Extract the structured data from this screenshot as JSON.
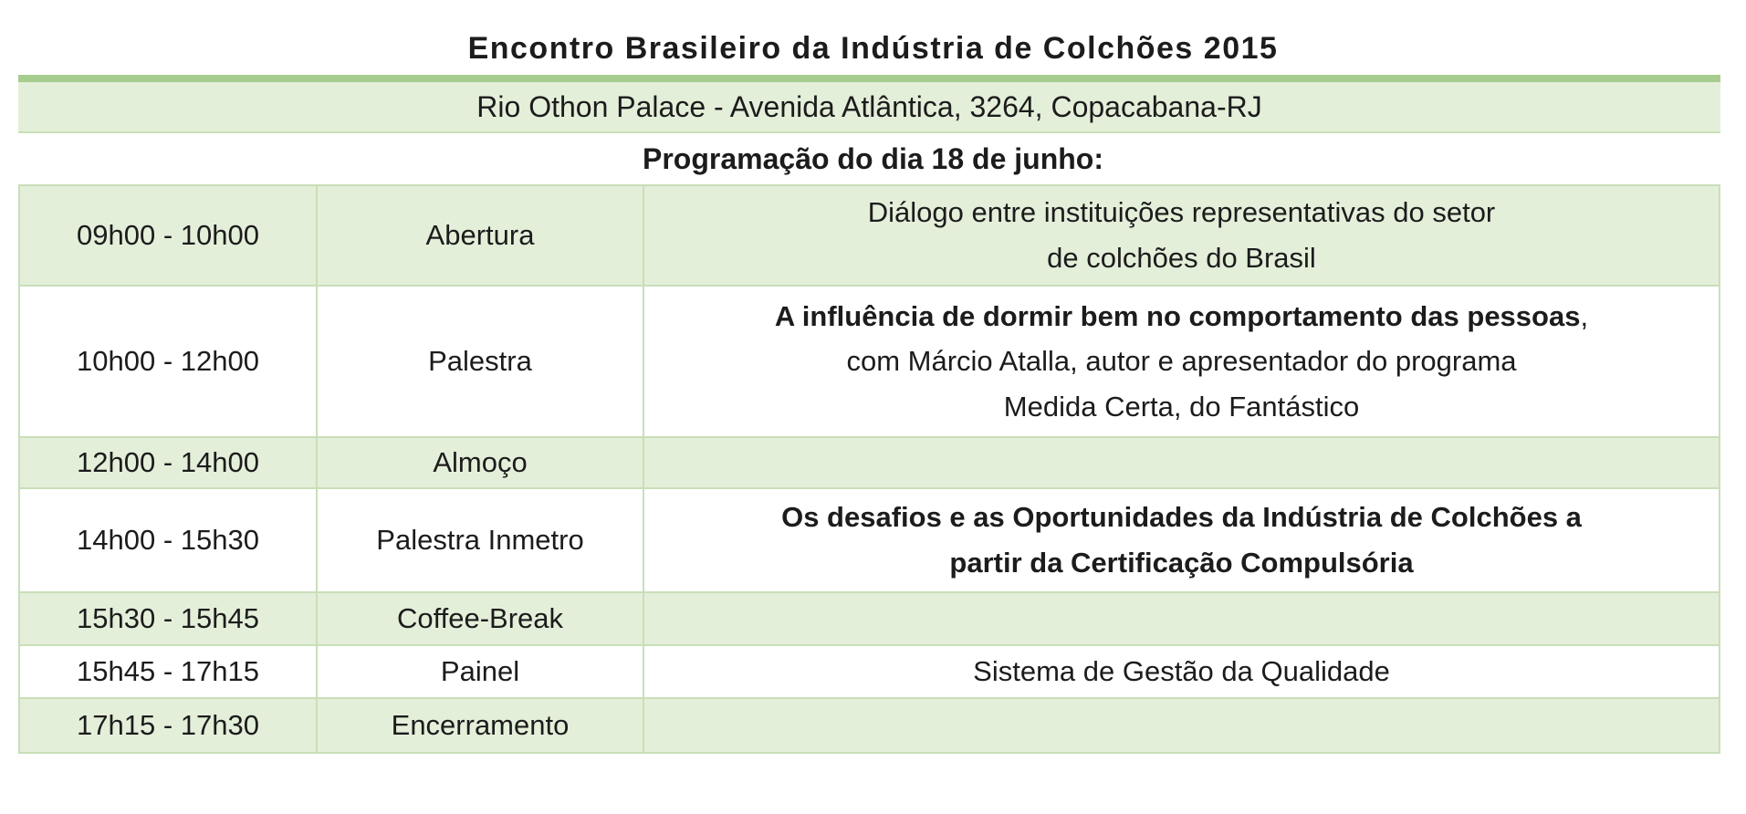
{
  "document": {
    "title": "Encontro Brasileiro da Indústria de Colchões 2015",
    "venue_bar": "Rio Othon Palace - Avenida Atlântica, 3264, Copacabana-RJ",
    "program_heading": "Programação do dia 18 de junho:"
  },
  "colors": {
    "accent_green": "#a6cc8e",
    "shaded_row_green": "#e4efda",
    "grid_line_green": "#c9dfb8",
    "text": "#1c1c1c"
  },
  "schedule": {
    "columns": [
      "time",
      "session",
      "description"
    ],
    "rows": [
      {
        "time": "09h00 - 10h00",
        "session": "Abertura",
        "shaded": true,
        "description": [
          [
            {
              "text": "Diálogo entre instituições representativas do setor",
              "bold": false
            }
          ],
          [
            {
              "text": "de colchões do Brasil",
              "bold": false
            }
          ]
        ]
      },
      {
        "time": "10h00 - 12h00",
        "session": "Palestra",
        "shaded": false,
        "description": [
          [
            {
              "text": "A influência de dormir bem no comportamento das pessoas",
              "bold": true
            },
            {
              "text": ",",
              "bold": false
            }
          ],
          [
            {
              "text": "com Márcio Atalla, autor e apresentador do programa",
              "bold": false
            }
          ],
          [
            {
              "text": "Medida Certa, do Fantástico",
              "bold": false
            }
          ]
        ]
      },
      {
        "time": "12h00 - 14h00",
        "session": "Almoço",
        "shaded": true,
        "description": []
      },
      {
        "time": "14h00 - 15h30",
        "session": "Palestra Inmetro",
        "shaded": false,
        "description": [
          [
            {
              "text": "Os desafios e as Oportunidades da Indústria de Colchões a",
              "bold": true
            }
          ],
          [
            {
              "text": "partir da Certificação Compulsória",
              "bold": true
            }
          ]
        ]
      },
      {
        "time": "15h30 - 15h45",
        "session": "Coffee-Break",
        "shaded": true,
        "description": []
      },
      {
        "time": "15h45 - 17h15",
        "session": "Painel",
        "shaded": false,
        "description": [
          [
            {
              "text": "Sistema de Gestão da Qualidade",
              "bold": false
            }
          ]
        ]
      },
      {
        "time": "17h15 - 17h30",
        "session": "Encerramento",
        "shaded": true,
        "description": []
      }
    ]
  }
}
